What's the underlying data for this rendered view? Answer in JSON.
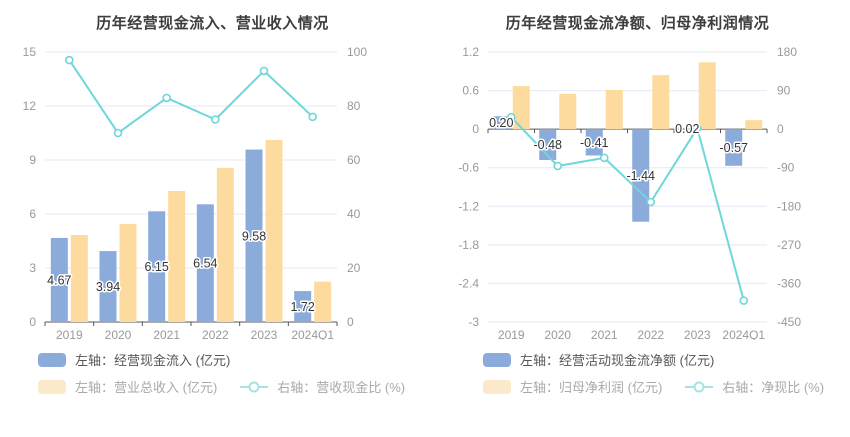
{
  "colors": {
    "bar_blue": "#8bacdb",
    "bar_yellow": "#fddb9e",
    "line_teal": "#6fd6d9",
    "legend_yellow_pale": "#fbe9ca",
    "legend_teal_pale": "#a5e3e5",
    "grid": "#e4e9f4",
    "axis": "#555555",
    "tick_text": "#999999",
    "title_text": "#3d3d3d",
    "bar_label_text": "#333333"
  },
  "chart_data": [
    {
      "type": "bar",
      "title": "历年经营现金流入、营业收入情况",
      "categories": [
        "2019",
        "2020",
        "2021",
        "2022",
        "2023",
        "2024Q1"
      ],
      "series": [
        {
          "name": "左轴：经营现金流入 (亿元)",
          "type": "bar",
          "axis": "left",
          "color": "#8bacdb",
          "values": [
            4.67,
            3.94,
            6.15,
            6.54,
            9.58,
            1.72
          ],
          "labels": [
            "4.67",
            "3.94",
            "6.15",
            "6.54",
            "9.58",
            "1.72"
          ]
        },
        {
          "name": "左轴：营业总收入 (亿元)",
          "type": "bar",
          "axis": "left",
          "color": "#fddb9e",
          "values": [
            4.83,
            5.45,
            7.28,
            8.56,
            10.11,
            2.24
          ]
        },
        {
          "name": "右轴：营收现金比 (%)",
          "type": "line",
          "axis": "right",
          "color": "#6fd6d9",
          "values": [
            97,
            70,
            83,
            75,
            93,
            76
          ]
        }
      ],
      "left_axis": {
        "ticks": [
          15,
          12,
          9,
          6,
          3,
          0
        ],
        "max": 15,
        "min": 0
      },
      "right_axis": {
        "ticks": [
          100,
          80,
          60,
          40,
          20,
          0
        ],
        "max": 100,
        "min": 0
      },
      "grid_on": true,
      "legend_position": "bottom-left"
    },
    {
      "type": "bar",
      "title": "历年经营现金流净额、归母净利润情况",
      "categories": [
        "2019",
        "2020",
        "2021",
        "2022",
        "2023",
        "2024Q1"
      ],
      "series": [
        {
          "name": "左轴：经营活动现金流净额 (亿元)",
          "type": "bar",
          "axis": "left",
          "color": "#8bacdb",
          "values": [
            0.2,
            -0.48,
            -0.41,
            -1.44,
            0.02,
            -0.57
          ],
          "labels": [
            "0.20",
            "-0.48",
            "-0.41",
            "-1.44",
            "0.02",
            "-0.57"
          ]
        },
        {
          "name": "左轴：归母净利润 (亿元)",
          "type": "bar",
          "axis": "left",
          "color": "#fddb9e",
          "values": [
            0.67,
            0.55,
            0.61,
            0.84,
            1.04,
            0.14
          ]
        },
        {
          "name": "右轴：净现比 (%)",
          "type": "line",
          "axis": "right",
          "color": "#6fd6d9",
          "values": [
            28,
            -86,
            -67,
            -170,
            2,
            -400
          ]
        }
      ],
      "left_axis": {
        "ticks": [
          1.2,
          0.6,
          0,
          -0.6,
          -1.2,
          -1.8,
          -2.4,
          -3
        ],
        "max": 1.2,
        "min": -3
      },
      "right_axis": {
        "ticks": [
          180,
          90,
          0,
          -90,
          -180,
          -270,
          -360,
          -450
        ],
        "max": 180,
        "min": -450
      },
      "grid_on": true,
      "legend_position": "bottom-left"
    }
  ]
}
